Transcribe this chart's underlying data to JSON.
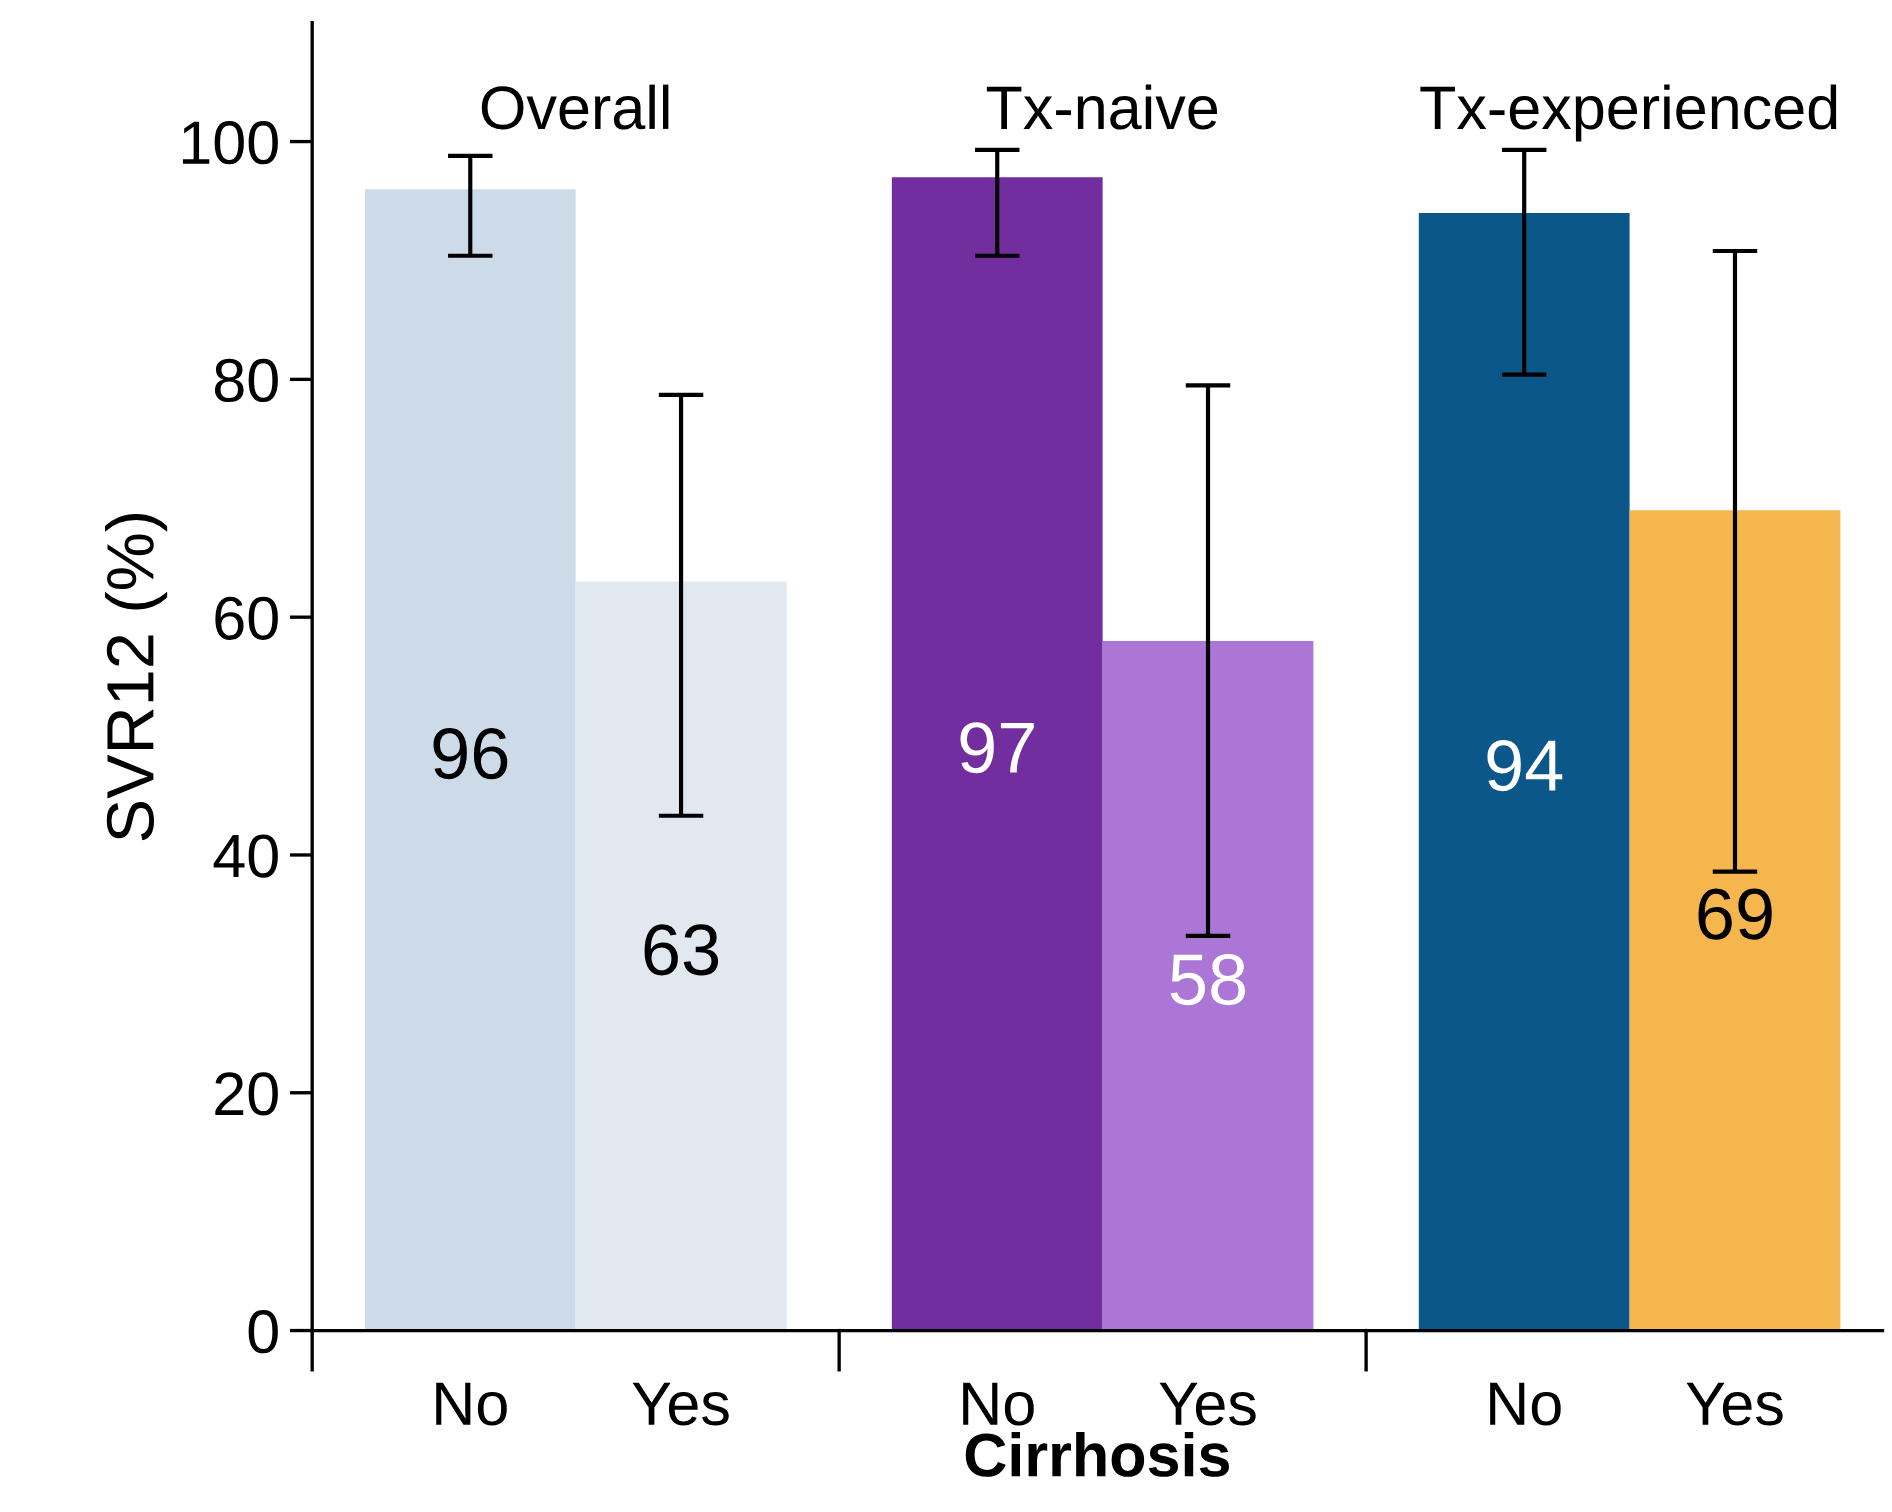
{
  "chart_data": {
    "type": "bar",
    "categories": [
      "No",
      "Yes",
      "No",
      "Yes",
      "No",
      "Yes"
    ],
    "values": [
      96,
      63,
      97,
      58,
      94,
      69
    ],
    "colors": [
      "#cddbe8",
      "#e1e8f0",
      "#722e9e",
      "#ab76d6",
      "#0b578a",
      "#f6b64e"
    ],
    "errors": [
      [
        90.4,
        98.8
      ],
      [
        43.3,
        78.7
      ],
      [
        90.4,
        99.3
      ],
      [
        33.2,
        79.5
      ],
      [
        80.4,
        99.3
      ],
      [
        38.6,
        90.8
      ]
    ],
    "data_labels": true,
    "annotations": [
      "Overall",
      "Tx-naive",
      "Tx-experienced"
    ],
    "xlabel": "Cirrhosis",
    "ylabel": "SVR12 (%)",
    "ylim": [
      0,
      110
    ],
    "yticks": [
      0,
      20,
      40,
      60,
      80,
      100
    ],
    "grid": false,
    "legend": false
  }
}
